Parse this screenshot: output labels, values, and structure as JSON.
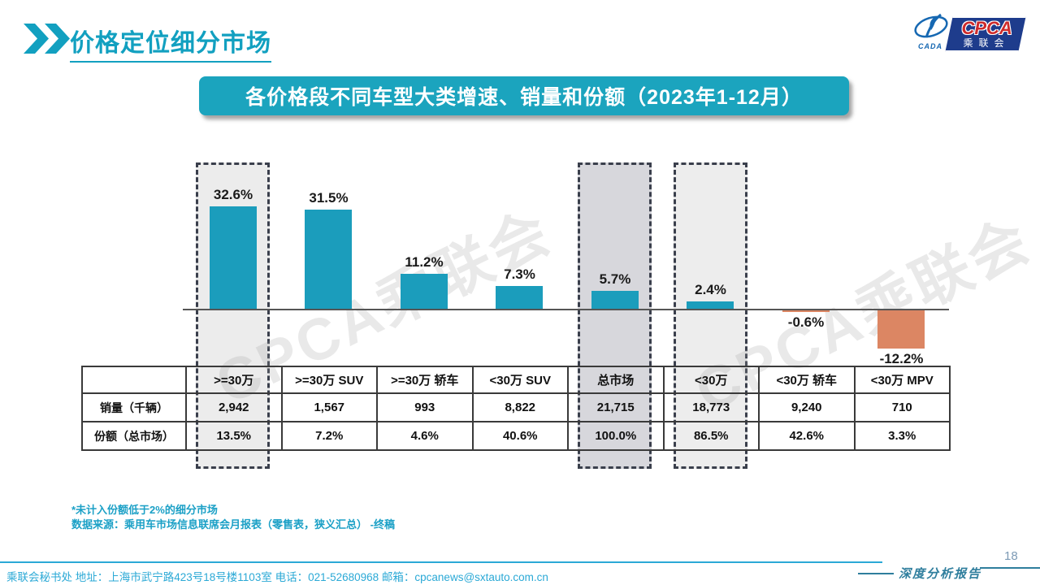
{
  "header": {
    "title": "价格定位细分市场",
    "logo": {
      "cpca": "CPCA",
      "cada": "CADA",
      "association": "乘联会"
    }
  },
  "banner": {
    "title": "各价格段不同车型大类增速、销量和份额（2023年1-12月）"
  },
  "chart_data": {
    "type": "bar",
    "categories": [
      ">=30万",
      ">=30万 SUV",
      ">=30万 轿车",
      "<30万 SUV",
      "总市场",
      "<30万",
      "<30万 轿车",
      "<30万 MPV"
    ],
    "series": [
      {
        "name": "增速",
        "values": [
          32.6,
          31.5,
          11.2,
          7.3,
          5.7,
          2.4,
          -0.6,
          -12.2
        ],
        "labels": [
          "32.6%",
          "31.5%",
          "11.2%",
          "7.3%",
          "5.7%",
          "2.4%",
          "-0.6%",
          "-12.2%"
        ]
      },
      {
        "name": "销量（千辆）",
        "values": [
          2942,
          1567,
          993,
          8822,
          21715,
          18773,
          9240,
          710
        ]
      },
      {
        "name": "份额（总市场）",
        "values": [
          13.5,
          7.2,
          4.6,
          40.6,
          100.0,
          86.5,
          42.6,
          3.3
        ]
      }
    ],
    "bar_color": "#1B9DBC",
    "negative_bar_color": "#DC8663",
    "highlights": [
      {
        "category": ">=30万",
        "fill": "#ECECEC"
      },
      {
        "category": "总市场",
        "fill": "#D7D7DC"
      },
      {
        "category": "<30万",
        "fill": "#EDEDED"
      }
    ],
    "ylim": [
      -15,
      36
    ],
    "grid": false,
    "legend": "none"
  },
  "table": {
    "corner": "",
    "columns": [
      ">=30万",
      ">=30万 SUV",
      ">=30万 轿车",
      "<30万 SUV",
      "总市场",
      "<30万",
      "<30万 轿车",
      "<30万 MPV"
    ],
    "rows": [
      {
        "label": "销量（千辆）",
        "cells": [
          "2,942",
          "1,567",
          "993",
          "8,822",
          "21,715",
          "18,773",
          "9,240",
          "710"
        ]
      },
      {
        "label": "份额（总市场）",
        "cells": [
          "13.5%",
          "7.2%",
          "4.6%",
          "40.6%",
          "100.0%",
          "86.5%",
          "42.6%",
          "3.3%"
        ]
      }
    ]
  },
  "footnote": {
    "line1": "*未计入份额低于2%的细分市场",
    "line2": "数据来源：乘用车市场信息联席会月报表（零售表，狭义汇总） -终稿"
  },
  "footer": {
    "contact": "乘联会秘书处   地址：上海市武宁路423号18号楼1103室  电话：021-52680968   邮箱：cpcanews@sxtauto.com.cn",
    "report_label": "深度分析报告",
    "page_number": "18"
  },
  "watermark": {
    "text": "CPCA乘联会"
  }
}
